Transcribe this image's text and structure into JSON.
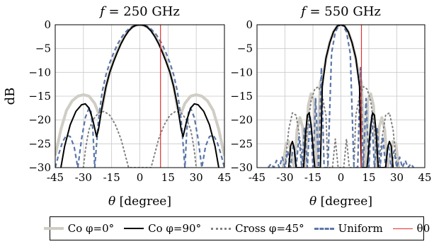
{
  "chart_data": [
    {
      "type": "line",
      "title": "f = 250 GHz",
      "xlabel": "θ [degree]",
      "ylabel": "dB",
      "xlim": [
        -45,
        45
      ],
      "ylim": [
        -30,
        0
      ],
      "xticks": [
        "-45",
        "-30",
        "-15",
        "0",
        "15",
        "30",
        "45"
      ],
      "yticks": [
        "0",
        "−5",
        "−10",
        "−15",
        "−20",
        "−25",
        "−30"
      ],
      "grid": true,
      "series": [
        {
          "name": "Co φ=0°",
          "color": "#d0cdc5",
          "x": [
            -45,
            -42,
            -39,
            -36,
            -33,
            -30,
            -27,
            -24,
            -22,
            -20,
            -18,
            -16,
            -14,
            -12,
            -10,
            -8,
            -6,
            -4,
            -2,
            0,
            2,
            4,
            6,
            8,
            10,
            12,
            14,
            16,
            18,
            20,
            22,
            24,
            27,
            30,
            33,
            36,
            39,
            42,
            45
          ],
          "y": [
            -27.5,
            -22,
            -18,
            -16,
            -15,
            -14.7,
            -15,
            -16.5,
            -18.5,
            -17.5,
            -13,
            -10,
            -7.5,
            -5.6,
            -3.8,
            -2.3,
            -1.2,
            -0.5,
            -0.1,
            0,
            -0.1,
            -0.5,
            -1.2,
            -2.3,
            -3.8,
            -5.6,
            -7.5,
            -10,
            -13,
            -17.5,
            -18.5,
            -16.5,
            -15,
            -14.7,
            -15,
            -16,
            -18,
            -22,
            -27.5
          ]
        },
        {
          "name": "Co φ=90°",
          "color": "#000000",
          "x": [
            -42,
            -40,
            -37,
            -34,
            -31,
            -29,
            -27,
            -25,
            -23,
            -22,
            -20,
            -18,
            -16,
            -14,
            -12,
            -10,
            -8,
            -6,
            -4,
            -2,
            0,
            2,
            4,
            6,
            8,
            10,
            12,
            14,
            16,
            18,
            20,
            22,
            23,
            25,
            27,
            29,
            31,
            34,
            37,
            40,
            42
          ],
          "y": [
            -30,
            -25.5,
            -21,
            -18.2,
            -16.8,
            -16.6,
            -17.5,
            -20,
            -23.5,
            -22,
            -17,
            -13,
            -10,
            -7.8,
            -5.8,
            -4,
            -2.5,
            -1.3,
            -0.5,
            -0.1,
            0,
            -0.1,
            -0.5,
            -1.3,
            -2.5,
            -4,
            -5.8,
            -7.8,
            -10,
            -13,
            -17,
            -22,
            -23.5,
            -20,
            -17.5,
            -16.6,
            -16.8,
            -18.2,
            -21,
            -25.5,
            -30
          ]
        },
        {
          "name": "Cross φ=45°",
          "color": "#808080",
          "x": [
            -30,
            -29,
            -28,
            -27,
            -25,
            -22,
            -19,
            -16,
            -13,
            -10,
            -8,
            -6,
            6,
            8,
            10,
            13,
            16,
            19,
            22,
            25,
            27,
            28,
            29,
            30
          ],
          "y": [
            -30,
            -26.5,
            -24,
            -22,
            -20,
            -18.5,
            -18.2,
            -19,
            -21,
            -24,
            -27,
            -30,
            -30,
            -27,
            -24,
            -21,
            -19,
            -18.2,
            -18.5,
            -20,
            -22,
            -24,
            -26.5,
            -30
          ]
        },
        {
          "name": "Uniform",
          "color": "#5b76a8",
          "x": [
            -45,
            -43,
            -41,
            -39,
            -37,
            -35,
            -33,
            -31,
            -29,
            -27,
            -26,
            -25,
            -24,
            -22,
            -20,
            -18,
            -16,
            -14,
            -12,
            -10,
            -8,
            -6,
            -4,
            -2,
            0,
            2,
            4,
            6,
            8,
            10,
            12,
            14,
            16,
            18,
            20,
            22,
            24,
            25,
            26,
            27,
            29,
            31,
            33,
            35,
            37,
            39,
            41,
            43,
            45
          ],
          "y": [
            -30,
            -27,
            -24.5,
            -23.2,
            -23.5,
            -25.5,
            -30,
            -24,
            -19.5,
            -17.5,
            -18.2,
            -22,
            -30,
            -20,
            -14,
            -10.5,
            -8,
            -6,
            -4.2,
            -2.8,
            -1.7,
            -0.9,
            -0.35,
            -0.05,
            0,
            -0.05,
            -0.35,
            -0.9,
            -1.7,
            -2.8,
            -4.2,
            -6,
            -8,
            -10.5,
            -14,
            -20,
            -30,
            -22,
            -18.2,
            -17.5,
            -19.5,
            -24,
            -30,
            -25.5,
            -23.5,
            -23.2,
            -24.5,
            -27,
            -30
          ]
        },
        {
          "name": "θ0",
          "color": "#e03030",
          "x": [
            11,
            11
          ],
          "y": [
            -30,
            0
          ]
        }
      ]
    },
    {
      "type": "line",
      "title": "f = 550 GHz",
      "xlabel": "θ [degree]",
      "ylabel": "",
      "xlim": [
        -45,
        45
      ],
      "ylim": [
        -30,
        0
      ],
      "xticks": [
        "-45",
        "-30",
        "-15",
        "0",
        "15",
        "30",
        "45"
      ],
      "yticks": [
        "0",
        "−5",
        "−10",
        "−15",
        "−20",
        "−25",
        "−30"
      ],
      "grid": true,
      "series": [
        {
          "name": "Co φ=0°",
          "color": "#d0cdc5",
          "x": [
            -31,
            -29.5,
            -28,
            -26.5,
            -25,
            -23.5,
            -22,
            -20.5,
            -19,
            -17.5,
            -16,
            -14.5,
            -13,
            -11,
            -9.5,
            -8,
            -6,
            -4,
            -2,
            0,
            2,
            4,
            6,
            8,
            9.5,
            11,
            13,
            14.5,
            16,
            17.5,
            19,
            20.5,
            22,
            23.5,
            25,
            26.5,
            28,
            29.5,
            31
          ],
          "y": [
            -30,
            -25,
            -24.5,
            -27.5,
            -30,
            -22,
            -19.5,
            -21.5,
            -30,
            -17,
            -14.5,
            -15.8,
            -30,
            -12,
            -10.5,
            -7.2,
            -3.7,
            -1.5,
            -0.3,
            0,
            -0.3,
            -1.5,
            -3.7,
            -7.2,
            -10.5,
            -12,
            -30,
            -15.8,
            -14.5,
            -17,
            -30,
            -21.5,
            -19.5,
            -22,
            -30,
            -27.5,
            -24.5,
            -25,
            -30
          ]
        },
        {
          "name": "Co φ=90°",
          "color": "#000000",
          "x": [
            -28,
            -27,
            -26,
            -25,
            -24,
            -20,
            -19,
            -18,
            -17,
            -16,
            -14,
            -11,
            -10,
            -8,
            -6,
            -4,
            -2,
            0,
            2,
            4,
            6,
            8,
            10,
            11,
            14,
            16,
            17,
            18,
            19,
            20,
            24,
            25,
            26,
            27,
            28
          ],
          "y": [
            -30,
            -25.5,
            -24.5,
            -26,
            -30,
            -30,
            -23,
            -19,
            -18.5,
            -21,
            -30,
            -30,
            -13,
            -7,
            -3.8,
            -1.5,
            -0.3,
            0,
            -0.3,
            -1.5,
            -3.8,
            -7,
            -13,
            -30,
            -30,
            -21,
            -18.5,
            -19,
            -23,
            -30,
            -30,
            -26,
            -24.5,
            -25.5,
            -30
          ]
        },
        {
          "name": "Cross φ=45°",
          "color": "#808080",
          "x": [
            -30,
            -28,
            -26,
            -24,
            -22,
            -20,
            -18,
            -16,
            -14,
            -12,
            -10,
            -8,
            -7,
            -4.5,
            -3,
            -1.5,
            1.5,
            3,
            4.5,
            7,
            8,
            10,
            12,
            14,
            16,
            18,
            20,
            22,
            24,
            26,
            28,
            30
          ],
          "y": [
            -30,
            -22,
            -18.5,
            -19,
            -24,
            -30,
            -22,
            -16,
            -13.5,
            -13,
            -15,
            -19,
            -30,
            -30,
            -24,
            -30,
            -30,
            -24,
            -30,
            -30,
            -19,
            -15,
            -13,
            -13.5,
            -16,
            -22,
            -30,
            -24,
            -19,
            -18.5,
            -22,
            -30
          ]
        },
        {
          "name": "Uniform",
          "color": "#5b76a8",
          "x": [
            -39,
            -37.5,
            -36,
            -34.5,
            -33,
            -31.5,
            -30,
            -28.5,
            -27,
            -25.5,
            -24,
            -22.5,
            -21,
            -19.5,
            -18,
            -16.5,
            -15,
            -13.5,
            -12,
            -10.5,
            -9,
            -7,
            -5,
            -3,
            -1,
            0,
            1,
            3,
            5,
            7,
            9,
            10.5,
            12,
            13.5,
            15,
            16.5,
            18,
            19.5,
            21,
            22.5,
            24,
            25.5,
            27,
            28.5,
            30,
            31.5,
            33,
            34.5,
            36,
            37.5,
            39
          ],
          "y": [
            -30,
            -29.2,
            -30,
            -28.5,
            -30,
            -27.8,
            -30,
            -26.5,
            -30,
            -25,
            -30,
            -23.5,
            -30,
            -21.5,
            -30,
            -19,
            -30,
            -15.5,
            -30,
            -9,
            -30,
            -30,
            -6,
            -1.5,
            -0.1,
            0,
            -0.1,
            -1.5,
            -6,
            -30,
            -30,
            -9,
            -30,
            -15.5,
            -30,
            -19,
            -30,
            -21.5,
            -30,
            -23.5,
            -30,
            -25,
            -30,
            -26.5,
            -30,
            -27.8,
            -30,
            -28.5,
            -30,
            -29.2,
            -30
          ]
        },
        {
          "name": "θ0",
          "color": "#e03030",
          "x": [
            11,
            11
          ],
          "y": [
            -30,
            0
          ]
        }
      ]
    }
  ],
  "legend": {
    "placement": "bottom",
    "items": [
      {
        "label": "Co φ=0°",
        "color": "#d0cdc5",
        "style": "solid-thick"
      },
      {
        "label": "Co φ=90°",
        "color": "#000000",
        "style": "solid"
      },
      {
        "label": "Cross φ=45°",
        "color": "#808080",
        "style": "dotted"
      },
      {
        "label": "Uniform",
        "color": "#5b76a8",
        "style": "dashed"
      },
      {
        "label": "θ0",
        "color": "#e03030",
        "style": "solid-thin"
      }
    ]
  }
}
